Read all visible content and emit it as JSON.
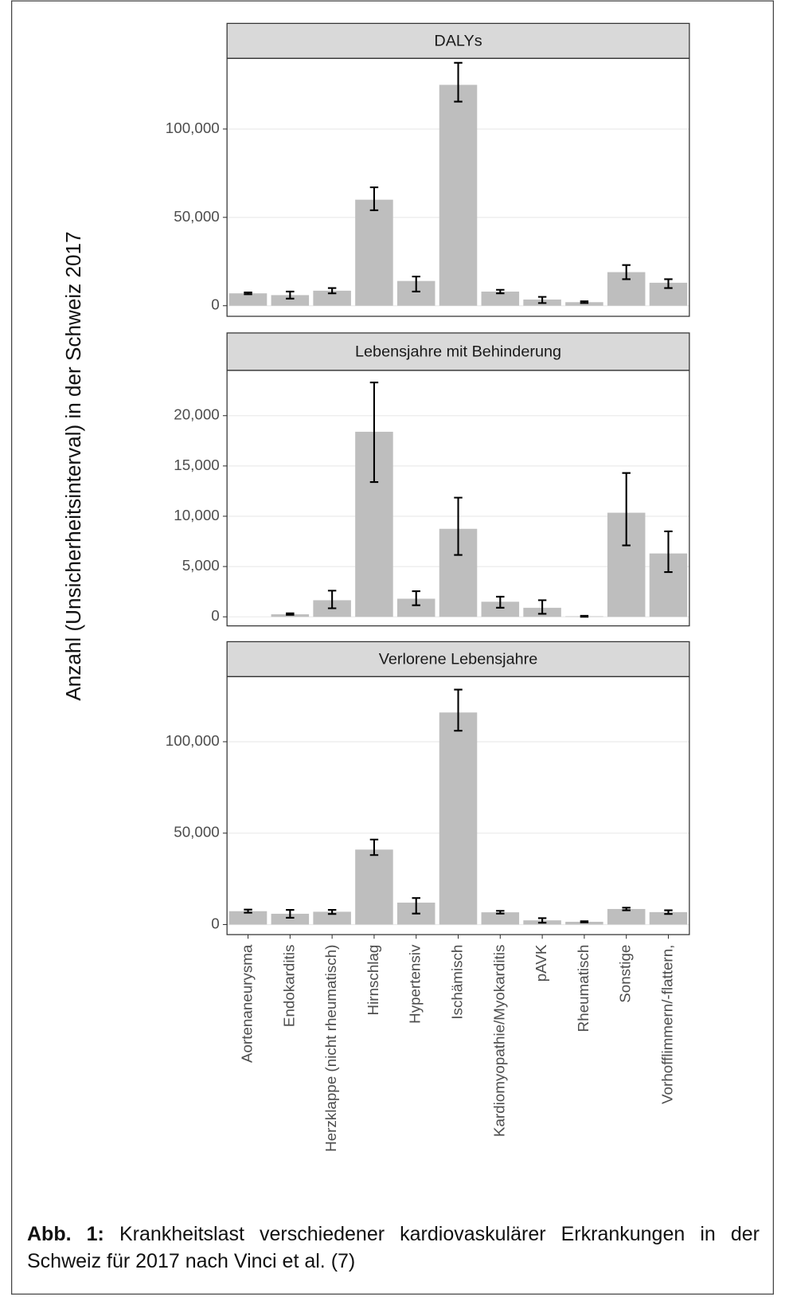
{
  "chart_data": {
    "type": "bar",
    "ylabel": "Anzahl (Unsicherheitsinterval) in der Schweiz 2017",
    "categories": [
      "Aortenaneurysma",
      "Endokarditis",
      "Herzklappe (nicht rheumatisch)",
      "Hirnschlag",
      "Hypertensiv",
      "Ischämisch",
      "Kardiomyopathie/Myokarditis",
      "pAVK",
      "Rheumatisch",
      "Sonstige",
      "Vorhofflimmern/-flattern,"
    ],
    "color": "#bebebe",
    "grid": true,
    "facets": [
      {
        "title": "DALYs",
        "values": [
          7000,
          6000,
          8500,
          60000,
          14000,
          125000,
          8000,
          3500,
          2000,
          19000,
          13000
        ],
        "ci": [
          [
            6500,
            7500
          ],
          [
            4000,
            8000
          ],
          [
            7000,
            10000
          ],
          [
            54000,
            67000
          ],
          [
            8000,
            16500
          ],
          [
            115500,
            137500
          ],
          [
            7000,
            9000
          ],
          [
            1500,
            5000
          ],
          [
            1500,
            2500
          ],
          [
            15000,
            23000
          ],
          [
            10000,
            15000
          ]
        ],
        "ylim": [
          -6000,
          140000
        ],
        "yticks": [
          0,
          {
            "value": 50000,
            "label": "50,000"
          },
          {
            "value": 100000,
            "label": "100,000"
          }
        ]
      },
      {
        "title": "Lebensjahre mit Behinderung",
        "values": [
          0,
          250,
          1650,
          18400,
          1800,
          8750,
          1500,
          900,
          50,
          10350,
          6300
        ],
        "ci": [
          null,
          [
            200,
            350
          ],
          [
            850,
            2600
          ],
          [
            13400,
            23300
          ],
          [
            1150,
            2550
          ],
          [
            6150,
            11850
          ],
          [
            900,
            2000
          ],
          [
            300,
            1650
          ],
          [
            0,
            100
          ],
          [
            7100,
            14300
          ],
          [
            4450,
            8500
          ]
        ],
        "ylim": [
          -900,
          24500
        ],
        "yticks": [
          0,
          {
            "value": 5000,
            "label": "5,000"
          },
          {
            "value": 10000,
            "label": "10,000"
          },
          {
            "value": 15000,
            "label": "15,000"
          },
          {
            "value": 20000,
            "label": "20,000"
          }
        ]
      },
      {
        "title": "Verlorene Lebensjahre",
        "values": [
          7300,
          5900,
          7000,
          41000,
          12000,
          116000,
          6700,
          2300,
          1500,
          8500,
          6800
        ],
        "ci": [
          [
            6500,
            8200
          ],
          [
            3700,
            8000
          ],
          [
            5800,
            8000
          ],
          [
            38000,
            46500
          ],
          [
            6000,
            14500
          ],
          [
            106000,
            128500
          ],
          [
            6000,
            7500
          ],
          [
            1000,
            3500
          ],
          [
            1200,
            1800
          ],
          [
            7800,
            9200
          ],
          [
            5800,
            7800
          ]
        ],
        "ylim": [
          -5500,
          135600
        ],
        "yticks": [
          0,
          {
            "value": 50000,
            "label": "50,000"
          },
          {
            "value": 100000,
            "label": "100,000"
          }
        ]
      }
    ]
  },
  "caption": {
    "label": "Abb. 1:",
    "text": "Krankheitslast verschiedener kardiovaskulärer Erkrankungen in der Schweiz für 2017 nach Vinci et al. (7)"
  }
}
